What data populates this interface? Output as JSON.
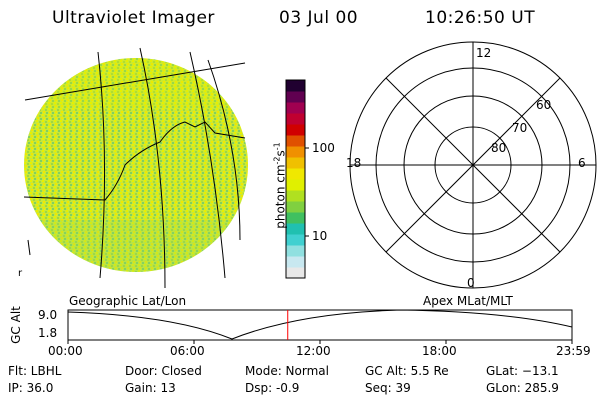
{
  "header": {
    "title": "Ultraviolet Imager",
    "date": "03 Jul 00",
    "time": "10:26:50 UT"
  },
  "colorbar": {
    "unit_label": "photon cm",
    "unit_exp1": "-2",
    "unit_s": "s",
    "unit_exp2": "-1",
    "ticks": [
      "100",
      "10"
    ],
    "colors": [
      "#e8e8e8",
      "#c8e8f0",
      "#90e0e0",
      "#40d0d0",
      "#20c0b0",
      "#40c060",
      "#80d040",
      "#b0e020",
      "#e0f000",
      "#f0e800",
      "#f0c000",
      "#f09000",
      "#e05000",
      "#d00000",
      "#c00030",
      "#a00050",
      "#600050",
      "#200030"
    ]
  },
  "polar": {
    "labels": {
      "top": "12",
      "bottom": "0",
      "left": "18",
      "right": "6",
      "ring60": "60",
      "ring70": "70",
      "ring80": "80"
    }
  },
  "globe": {
    "corner_mark": "r"
  },
  "timeline": {
    "left_caption": "Geographic Lat/Lon",
    "right_caption": "Apex MLat/MLT",
    "ylabel": "GC Alt",
    "y_max": "9.0",
    "y_min": "1.8",
    "x_ticks": [
      "00:00",
      "06:00",
      "12:00",
      "18:00",
      "23:59"
    ],
    "current_time_fraction": 0.436,
    "marker_color": "#ff0000"
  },
  "info": {
    "flt": "Flt: LBHL",
    "ip": "IP: 36.0",
    "door": "Door: Closed",
    "gain": "Gain: 13",
    "mode": "Mode: Normal",
    "dsp": "Dsp:    -0.9",
    "gcalt": "GC Alt: 5.5 Re",
    "seq": "Seq: 39",
    "glat": "GLat: −13.1",
    "glon": "GLon: 285.9"
  }
}
